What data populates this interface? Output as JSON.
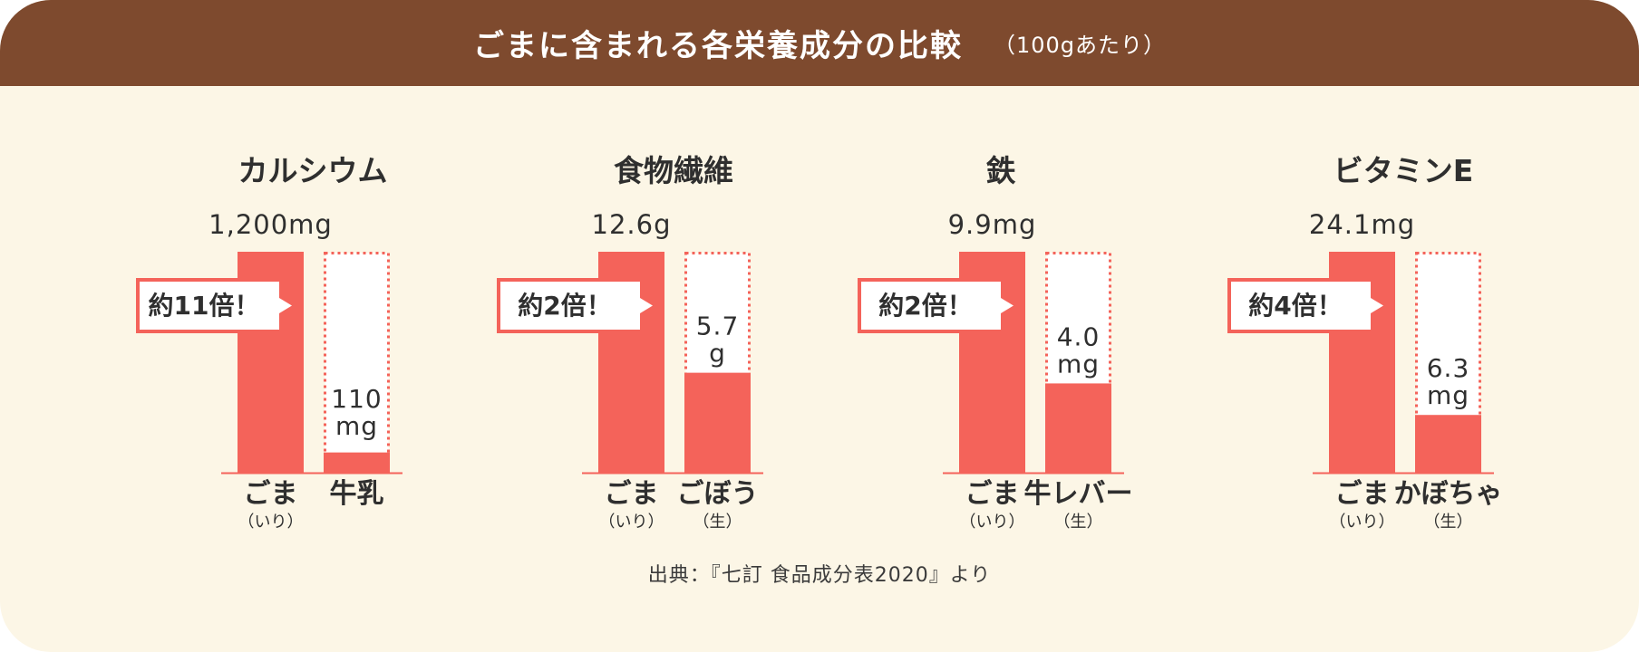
{
  "header": {
    "title": "ごまに含まれる各栄養成分の比較",
    "subtitle": "（100gあたり）"
  },
  "colors": {
    "header_bg": "#7e4a2e",
    "background": "#fcf6e6",
    "bar": "#f4635a",
    "text": "#2f2f2f"
  },
  "chart_data": [
    {
      "type": "bar",
      "title": "カルシウム",
      "categories": [
        "ごま",
        "牛乳"
      ],
      "category_notes": [
        "（いり）",
        ""
      ],
      "values": [
        1200,
        110
      ],
      "unit": "mg",
      "value_labels": [
        "1,200mg",
        "110\nmg"
      ],
      "ratio_label": "約11倍！"
    },
    {
      "type": "bar",
      "title": "食物繊維",
      "categories": [
        "ごま",
        "ごぼう"
      ],
      "category_notes": [
        "（いり）",
        "（生）"
      ],
      "values": [
        12.6,
        5.7
      ],
      "unit": "g",
      "value_labels": [
        "12.6g",
        "5.7\ng"
      ],
      "ratio_label": "約2倍！"
    },
    {
      "type": "bar",
      "title": "鉄",
      "categories": [
        "ごま",
        "牛レバー"
      ],
      "category_notes": [
        "（いり）",
        "（生）"
      ],
      "values": [
        9.9,
        4.0
      ],
      "unit": "mg",
      "value_labels": [
        "9.9mg",
        "4.0\nmg"
      ],
      "ratio_label": "約2倍！"
    },
    {
      "type": "bar",
      "title": "ビタミンE",
      "categories": [
        "ごま",
        "かぼちゃ"
      ],
      "category_notes": [
        "（いり）",
        "（生）"
      ],
      "values": [
        24.1,
        6.3
      ],
      "unit": "mg",
      "value_labels": [
        "24.1mg",
        "6.3\nmg"
      ],
      "ratio_label": "約4倍！"
    }
  ],
  "source": "出典：『七訂 食品成分表2020』より"
}
